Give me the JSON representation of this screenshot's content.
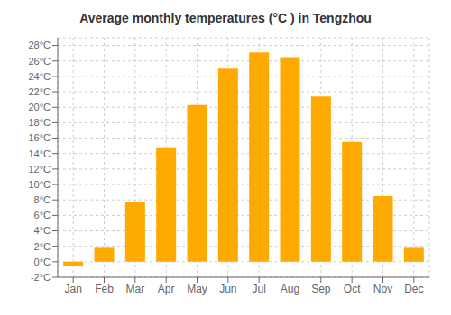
{
  "chart_data": {
    "type": "bar",
    "title": "Average monthly temperatures (°C ) in Tengzhou",
    "categories": [
      "Jan",
      "Feb",
      "Mar",
      "Apr",
      "May",
      "Jun",
      "Jul",
      "Aug",
      "Sep",
      "Oct",
      "Nov",
      "Dec"
    ],
    "values": [
      -0.5,
      1.8,
      7.7,
      14.8,
      20.3,
      25.0,
      27.1,
      26.5,
      21.4,
      15.5,
      8.5,
      1.8
    ],
    "color": "#FFAA00",
    "ylim": [
      -2,
      29
    ],
    "yticks": [
      {
        "value": -2,
        "label": "-2°C"
      },
      {
        "value": 0,
        "label": "0°C"
      },
      {
        "value": 2,
        "label": "2°C"
      },
      {
        "value": 4,
        "label": "4°C"
      },
      {
        "value": 6,
        "label": "6°C"
      },
      {
        "value": 8,
        "label": "8°C"
      },
      {
        "value": 10,
        "label": "10°C"
      },
      {
        "value": 12,
        "label": "12°C"
      },
      {
        "value": 14,
        "label": "14°C"
      },
      {
        "value": 16,
        "label": "16°C"
      },
      {
        "value": 18,
        "label": "18°C"
      },
      {
        "value": 20,
        "label": "20°C"
      },
      {
        "value": 22,
        "label": "22°C"
      },
      {
        "value": 24,
        "label": "24°C"
      },
      {
        "value": 26,
        "label": "26°C"
      },
      {
        "value": 28,
        "label": "28°C"
      }
    ],
    "grid": true
  }
}
